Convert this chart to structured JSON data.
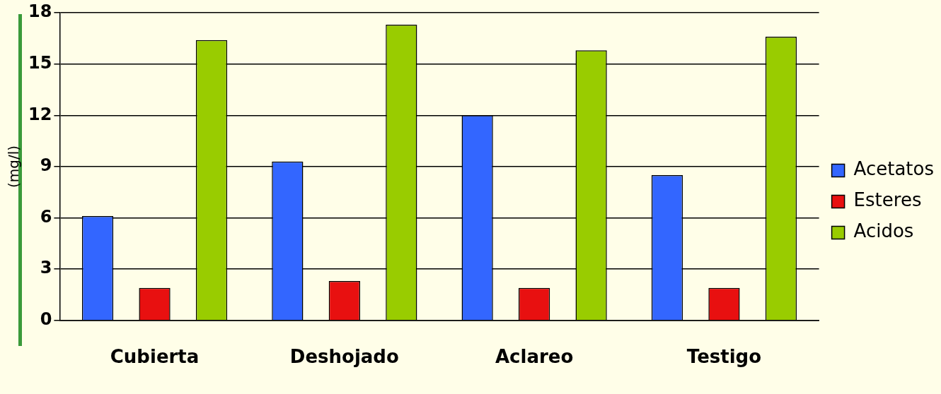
{
  "chart_data": {
    "type": "bar",
    "ylabel": "(mg/l)",
    "categories": [
      "Cubierta",
      "Deshojado",
      "Aclareo",
      "Testigo"
    ],
    "series": [
      {
        "name": "Acetatos",
        "color": "#3366ff",
        "values": [
          6.1,
          9.3,
          12.0,
          8.5
        ]
      },
      {
        "name": "Esteres",
        "color": "#e81010",
        "values": [
          1.9,
          2.3,
          1.9,
          1.9
        ]
      },
      {
        "name": "Acidos",
        "color": "#99cc00",
        "values": [
          16.4,
          17.3,
          15.8,
          16.6
        ]
      }
    ],
    "ylim": [
      0,
      18
    ],
    "yticks": [
      0,
      3,
      6,
      9,
      12,
      15,
      18
    ],
    "grid": "y",
    "legend": "right"
  }
}
